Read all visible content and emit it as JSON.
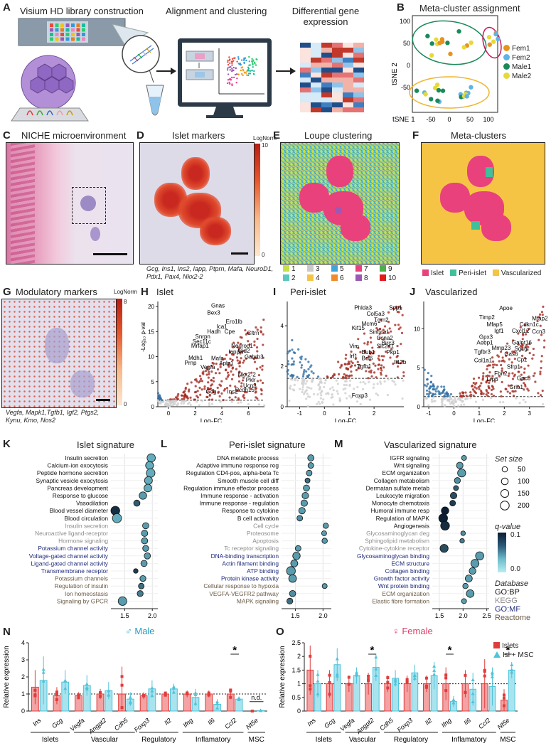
{
  "panelA": {
    "label": "A",
    "step1": "Visium HD library construction",
    "step2": "Alignment and clustering",
    "step3_line1": "Differential gene",
    "step3_line2": "expression"
  },
  "panelB": {
    "label": "B",
    "title": "Meta-cluster assignment",
    "ylabel": "tSNE 2",
    "xlabel": "tSNE 1",
    "yticks": [
      "100",
      "50",
      "0",
      "-50"
    ],
    "xticks": [
      "-50",
      "0",
      "50",
      "100"
    ],
    "legend": [
      {
        "name": "Fem1",
        "color": "#e6931f"
      },
      {
        "name": "Fem2",
        "color": "#5fb3e6"
      },
      {
        "name": "Male1",
        "color": "#1b8a5a"
      },
      {
        "name": "Male2",
        "color": "#e7d93b"
      }
    ]
  },
  "panelC": {
    "label": "C",
    "title": "NICHE microenvironment"
  },
  "panelD": {
    "label": "D",
    "title": "Islet markers",
    "scale_title": "LogNorm",
    "scale_max": "10",
    "scale_min": "0",
    "caption": "Gcg, Ins1, Ins2, Iapp, Ptprn, Mafa, NeuroD1, Pdx1, Pax4, Nkx2-2"
  },
  "panelE": {
    "label": "E",
    "title": "Loupe clustering",
    "clusters": [
      {
        "id": "1",
        "color": "#c6e04b"
      },
      {
        "id": "3",
        "color": "#c9c9c9"
      },
      {
        "id": "5",
        "color": "#3ea6d8"
      },
      {
        "id": "7",
        "color": "#e8417c"
      },
      {
        "id": "9",
        "color": "#4daf4a"
      },
      {
        "id": "2",
        "color": "#5cc6c0"
      },
      {
        "id": "4",
        "color": "#f6c445"
      },
      {
        "id": "6",
        "color": "#f08b2c"
      },
      {
        "id": "8",
        "color": "#9b59b6"
      },
      {
        "id": "10",
        "color": "#e31a1c"
      }
    ]
  },
  "panelF": {
    "label": "F",
    "title": "Meta-clusters",
    "legend": [
      {
        "name": "Islet",
        "color": "#e8417c"
      },
      {
        "name": "Peri-islet",
        "color": "#3fbf9a"
      },
      {
        "name": "Vascularized",
        "color": "#f6c445"
      }
    ]
  },
  "panelG": {
    "label": "G",
    "title": "Modulatory markers",
    "scale_title": "LogNorm",
    "scale_max": "8",
    "scale_min": "0",
    "caption_line1": "Vegfa, Mapk1,Tgfb1, Igf2, Ptgs2,",
    "caption_line2": "Kynu, Kmo, Nos2"
  },
  "panelH": {
    "label": "H",
    "title": "Islet",
    "ylabel": "-Log₁₀ p-val",
    "xlabel": "Log₂FC",
    "yticks": [
      "0",
      "5",
      "10",
      "15",
      "20"
    ],
    "xticks": [
      "0",
      "2",
      "4",
      "6"
    ],
    "genes": [
      "Gnas",
      "Bex3",
      "Ero1lb",
      "Ica1",
      "Hadh",
      "Cpe",
      "Cltrn",
      "Snrpn",
      "Sec11c",
      "Mrfap1",
      "Neurod1",
      "Gjd2",
      "Iapp",
      "Gabrb3",
      "Mafa",
      "Mdh1",
      "Aplp1",
      "Prnp",
      "Vegfa",
      "Nkx2-2",
      "Pklr",
      "Ucn3",
      "Pcdh15",
      "Gcg",
      "Ins2"
    ]
  },
  "panelI": {
    "label": "I",
    "title": "Peri-islet",
    "xlabel": "Log₂FC",
    "yticks": [
      "0",
      "2",
      "4"
    ],
    "xticks": [
      "-1",
      "0",
      "1",
      "2"
    ],
    "genes": [
      "Spp1",
      "Phlda3",
      "Col5a3",
      "Tgm2",
      "Mcm6",
      "Kif15",
      "Sinhcaf",
      "Ccna2",
      "Birc3",
      "Vim",
      "Slc2a1",
      "Bub1",
      "Pkp1",
      "Irf1",
      "Bcl6",
      "Tgfb1",
      "Il12b",
      "Foxp3"
    ]
  },
  "panelJ": {
    "label": "J",
    "title": "Vascularized",
    "xlabel": "Log₂FC",
    "yticks": [
      "0",
      "5",
      "10"
    ],
    "xticks": [
      "-1",
      "0",
      "1",
      "2",
      "3"
    ],
    "genes": [
      "Apoe",
      "Timp2",
      "Mfap2",
      "Mfap5",
      "Cdkn1c",
      "Igf1",
      "Cxcl12",
      "Ccn3",
      "Gpx3",
      "Aebp1",
      "Galnt16",
      "Mmp23",
      "Sgcg",
      "Tgfbr3",
      "Gas6",
      "Col1a1",
      "Cpz",
      "Sfrp1",
      "Fbn2",
      "Lrp6",
      "Gpc3",
      "Gria1"
    ]
  },
  "panelK": {
    "label": "K",
    "title": "Islet signature",
    "xlabel": "NES",
    "xticks": [
      "1.5",
      "2.0"
    ],
    "terms": [
      {
        "name": "Insulin secretion",
        "db": "GO:BP",
        "nes": 1.98,
        "q": 0.01,
        "size": 170
      },
      {
        "name": "Calcium-ion exocytosis",
        "db": "GO:BP",
        "nes": 1.95,
        "q": 0.01,
        "size": 150
      },
      {
        "name": "Peptide hormone secretion",
        "db": "GO:BP",
        "nes": 1.97,
        "q": 0.01,
        "size": 190
      },
      {
        "name": "Synaptic vesicle exocytosis",
        "db": "GO:BP",
        "nes": 1.93,
        "q": 0.01,
        "size": 150
      },
      {
        "name": "Pancreas development",
        "db": "GO:BP",
        "nes": 1.92,
        "q": 0.01,
        "size": 140
      },
      {
        "name": "Response to glucose",
        "db": "GO:BP",
        "nes": 1.83,
        "q": 0.02,
        "size": 130
      },
      {
        "name": "Vasodilation",
        "db": "GO:BP",
        "nes": 1.72,
        "q": 0.06,
        "size": 80
      },
      {
        "name": "Blood vessel diameter",
        "db": "GO:BP",
        "nes": 1.33,
        "q": 0.09,
        "size": 200
      },
      {
        "name": "Blood circulation",
        "db": "GO:BP",
        "nes": 1.36,
        "q": 0.01,
        "size": 220
      },
      {
        "name": "Insulin secretion",
        "db": "KEGG",
        "nes": 1.88,
        "q": 0.02,
        "size": 80
      },
      {
        "name": "Neuroactive ligand-receptor",
        "db": "KEGG",
        "nes": 1.86,
        "q": 0.02,
        "size": 80
      },
      {
        "name": "Hormone signaling",
        "db": "KEGG",
        "nes": 1.86,
        "q": 0.02,
        "size": 80
      },
      {
        "name": "Potassium channel activity",
        "db": "GO:MF",
        "nes": 1.88,
        "q": 0.02,
        "size": 70
      },
      {
        "name": "Voltage-gated channel activity",
        "db": "GO:MF",
        "nes": 1.91,
        "q": 0.02,
        "size": 80
      },
      {
        "name": "Ligand-gated channel activity",
        "db": "GO:MF",
        "nes": 1.85,
        "q": 0.02,
        "size": 80
      },
      {
        "name": "Transmembrane receptor",
        "db": "GO:MF",
        "nes": 1.7,
        "q": 0.08,
        "size": 30
      },
      {
        "name": "Potassium channels",
        "db": "Reactome",
        "nes": 1.83,
        "q": 0.02,
        "size": 70
      },
      {
        "name": "Regulation of insulin",
        "db": "Reactome",
        "nes": 1.8,
        "q": 0.05,
        "size": 60
      },
      {
        "name": "Ion homeostasis",
        "db": "Reactome",
        "nes": 1.78,
        "q": 0.04,
        "size": 70
      },
      {
        "name": "Signaling by GPCR",
        "db": "Reactome",
        "nes": 1.46,
        "q": 0.02,
        "size": 190
      }
    ]
  },
  "panelL": {
    "label": "L",
    "title": "Peri-islet signature",
    "xlabel": "NES",
    "xticks": [
      "1.5",
      "2.0"
    ],
    "terms": [
      {
        "name": "DNA metabolic process",
        "db": "GO:BP",
        "nes": 1.78,
        "q": 0.02,
        "size": 80
      },
      {
        "name": "Adaptive immune response reg",
        "db": "GO:BP",
        "nes": 1.78,
        "q": 0.02,
        "size": 60
      },
      {
        "name": "Regulation CD4-pos, alpha-beta Tc",
        "db": "GO:BP",
        "nes": 1.75,
        "q": 0.02,
        "size": 60
      },
      {
        "name": "Smooth muscle cell diff",
        "db": "GO:BP",
        "nes": 1.72,
        "q": 0.05,
        "size": 40
      },
      {
        "name": "Regulation immune effector process",
        "db": "GO:BP",
        "nes": 1.7,
        "q": 0.02,
        "size": 80
      },
      {
        "name": "Immune response - activation",
        "db": "GO:BP",
        "nes": 1.68,
        "q": 0.02,
        "size": 90
      },
      {
        "name": "Immune response - regulation",
        "db": "GO:BP",
        "nes": 1.66,
        "q": 0.02,
        "size": 90
      },
      {
        "name": "Response to cytokine",
        "db": "GO:BP",
        "nes": 1.62,
        "q": 0.02,
        "size": 90
      },
      {
        "name": "B cell activation",
        "db": "GO:BP",
        "nes": 1.58,
        "q": 0.03,
        "size": 60
      },
      {
        "name": "Cell cycle",
        "db": "KEGG",
        "nes": 2.05,
        "q": 0.02,
        "size": 50
      },
      {
        "name": "Proteosome",
        "db": "KEGG",
        "nes": 2.02,
        "q": 0.02,
        "size": 40
      },
      {
        "name": "Apoptosis",
        "db": "KEGG",
        "nes": 2.03,
        "q": 0.02,
        "size": 50
      },
      {
        "name": "Tc receptor signaling",
        "db": "KEGG",
        "nes": 1.55,
        "q": 0.02,
        "size": 60
      },
      {
        "name": "DNA-binding transcription",
        "db": "GO:MF",
        "nes": 1.52,
        "q": 0.02,
        "size": 130
      },
      {
        "name": "Actin filament binding",
        "db": "GO:MF",
        "nes": 1.48,
        "q": 0.02,
        "size": 110
      },
      {
        "name": "ATP binding",
        "db": "GO:MF",
        "nes": 1.42,
        "q": 0.02,
        "size": 200
      },
      {
        "name": "Protein kinase activity",
        "db": "GO:MF",
        "nes": 1.45,
        "q": 0.02,
        "size": 140
      },
      {
        "name": "Cellular response to hypoxia",
        "db": "Reactome",
        "nes": 2.03,
        "q": 0.02,
        "size": 40
      },
      {
        "name": "VEGFA-VEGFR2 pathway",
        "db": "Reactome",
        "nes": 1.45,
        "q": 0.03,
        "size": 80
      },
      {
        "name": "MAPK signaling",
        "db": "Reactome",
        "nes": 1.4,
        "q": 0.05,
        "size": 70
      }
    ]
  },
  "panelM": {
    "label": "M",
    "title": "Vascularized signature",
    "xlabel": "NES",
    "xticks": [
      "1.5",
      "2.0",
      "2.5"
    ],
    "terms": [
      {
        "name": "IGFR signaling",
        "db": "GO:BP",
        "nes": 2.02,
        "q": 0.02,
        "size": 40
      },
      {
        "name": "Wnt signaling",
        "db": "GO:BP",
        "nes": 1.93,
        "q": 0.02,
        "size": 90
      },
      {
        "name": "ECM organization",
        "db": "GO:BP",
        "nes": 1.97,
        "q": 0.02,
        "size": 160
      },
      {
        "name": "Collagen metabolism",
        "db": "GO:BP",
        "nes": 1.88,
        "q": 0.03,
        "size": 70
      },
      {
        "name": "Dermatan sulfate metab",
        "db": "GO:BP",
        "nes": 1.85,
        "q": 0.06,
        "size": 40
      },
      {
        "name": "Leukocyte migration",
        "db": "GO:BP",
        "nes": 1.8,
        "q": 0.07,
        "size": 90
      },
      {
        "name": "Monocyte chemotaxis",
        "db": "GO:BP",
        "nes": 1.78,
        "q": 0.08,
        "size": 60
      },
      {
        "name": "Humoral immune resp",
        "db": "GO:BP",
        "nes": 1.62,
        "q": 0.1,
        "size": 130
      },
      {
        "name": "Regulation of MAPK",
        "db": "GO:BP",
        "nes": 1.58,
        "q": 0.1,
        "size": 200
      },
      {
        "name": "Angiogenesis",
        "db": "GO:BP",
        "nes": 1.62,
        "q": 0.09,
        "size": 200
      },
      {
        "name": "Glycosaminoglycan deg",
        "db": "KEGG",
        "nes": 2.0,
        "q": 0.03,
        "size": 30
      },
      {
        "name": "Sphingolipid metabolism",
        "db": "KEGG",
        "nes": 1.98,
        "q": 0.04,
        "size": 30
      },
      {
        "name": "Cytokine-cytokine receptor",
        "db": "KEGG",
        "nes": 1.6,
        "q": 0.07,
        "size": 160
      },
      {
        "name": "Glycosaminoglycan binding",
        "db": "GO:MF",
        "nes": 2.35,
        "q": 0.02,
        "size": 170
      },
      {
        "name": "ECM structure",
        "db": "GO:MF",
        "nes": 2.25,
        "q": 0.02,
        "size": 160
      },
      {
        "name": "Collagen binding",
        "db": "GO:MF",
        "nes": 2.2,
        "q": 0.02,
        "size": 100
      },
      {
        "name": "Growth factor activity",
        "db": "GO:MF",
        "nes": 2.12,
        "q": 0.02,
        "size": 110
      },
      {
        "name": "Wnt protein binding",
        "db": "GO:MF",
        "nes": 2.05,
        "q": 0.02,
        "size": 50
      },
      {
        "name": "ECM organization",
        "db": "Reactome",
        "nes": 2.15,
        "q": 0.02,
        "size": 140
      },
      {
        "name": "Elastic fibre formation",
        "db": "Reactome",
        "nes": 2.02,
        "q": 0.02,
        "size": 40
      }
    ]
  },
  "gsea_legend": {
    "set_size_title": "Set size",
    "set_sizes": [
      "50",
      "100",
      "150",
      "200"
    ],
    "q_title": "q-value",
    "q_max": "0.1",
    "q_min": "0.0",
    "db_title": "Database",
    "dbs": [
      {
        "name": "GO:BP",
        "color": "#111111"
      },
      {
        "name": "KEGG",
        "color": "#8c8c8c"
      },
      {
        "name": "GO:MF",
        "color": "#1f2a7a"
      },
      {
        "name": "Reactome",
        "color": "#6b5a45"
      }
    ]
  },
  "panelN": {
    "label": "N",
    "title": "♂ Male",
    "ylabel": "Relative expression",
    "yticks": [
      "0",
      "1",
      "2",
      "3",
      "4"
    ],
    "genes": [
      "Ins",
      "Gcg",
      "Vegfa",
      "Angpt2",
      "Cdh5",
      "Foxp3",
      "Il2",
      "Ifng",
      "Il6",
      "Ccl2",
      "Nt5e"
    ],
    "groups": [
      {
        "name": "Islets",
        "from": 0,
        "to": 1
      },
      {
        "name": "Vascular",
        "from": 2,
        "to": 4
      },
      {
        "name": "Regulatory",
        "from": 5,
        "to": 6
      },
      {
        "name": "Inflamatory",
        "from": 7,
        "to": 9
      },
      {
        "name": "MSC",
        "from": 10,
        "to": 10
      }
    ],
    "islets": [
      1.4,
      0.9,
      0.9,
      1.0,
      1.0,
      0.9,
      1.0,
      1.0,
      1.0,
      1.0,
      0.0
    ],
    "islets_sd": [
      1.0,
      0.5,
      0.2,
      0.3,
      1.6,
      0.2,
      0.1,
      0.2,
      0.2,
      0.3,
      0.0
    ],
    "msc": [
      1.8,
      1.7,
      1.5,
      1.2,
      0.7,
      1.3,
      1.3,
      0.8,
      0.4,
      0.7,
      0.03
    ],
    "msc_sd": [
      1.4,
      0.7,
      0.6,
      0.5,
      0.4,
      0.5,
      0.3,
      0.5,
      0.3,
      0.1,
      0.02
    ],
    "sig": [
      {
        "gene_index": 9,
        "mark": "*"
      }
    ],
    "nd": [
      {
        "gene_index": 10,
        "mark": "n.d."
      }
    ]
  },
  "panelO": {
    "label": "O",
    "title": "♀ Female",
    "ylabel": "Relative expression",
    "yticks": [
      "0",
      "0.5",
      "1",
      "1.5",
      "2",
      "2.5"
    ],
    "genes": [
      "Ins",
      "Gcg",
      "Vegfa",
      "Angpt2",
      "Cdh5",
      "Foxp3",
      "Il2",
      "Ifng",
      "Il6",
      "Ccl2",
      "Nt5e"
    ],
    "groups": [
      {
        "name": "Islets",
        "from": 0,
        "to": 1
      },
      {
        "name": "Vascular",
        "from": 2,
        "to": 3
      },
      {
        "name": "Regulatory",
        "from": 4,
        "to": 6
      },
      {
        "name": "Inflamatory",
        "from": 7,
        "to": 9
      },
      {
        "name": "MSC",
        "from": 10,
        "to": 10
      }
    ],
    "islets": [
      1.5,
      1.0,
      1.0,
      1.0,
      1.0,
      1.0,
      1.0,
      1.0,
      1.0,
      1.0,
      0.4
    ],
    "islets_sd": [
      0.9,
      0.5,
      0.3,
      0.4,
      0.3,
      0.3,
      0.3,
      0.6,
      0.5,
      0.9,
      0.4
    ],
    "msc": [
      1.0,
      1.7,
      1.3,
      1.6,
      1.2,
      1.4,
      1.3,
      0.35,
      0.8,
      0.9,
      1.5
    ],
    "msc_sd": [
      0.5,
      0.6,
      0.3,
      0.5,
      0.3,
      0.3,
      0.5,
      0.2,
      0.6,
      0.7,
      0.3
    ],
    "legend": [
      {
        "name": "Islets",
        "color": "#e03c3c"
      },
      {
        "name": "Isl + MSC",
        "color": "#4fc3d9"
      }
    ],
    "sig": [
      {
        "gene_index": 3,
        "mark": "*"
      },
      {
        "gene_index": 7,
        "mark": "*"
      },
      {
        "gene_index": 10,
        "mark": "*"
      }
    ]
  }
}
